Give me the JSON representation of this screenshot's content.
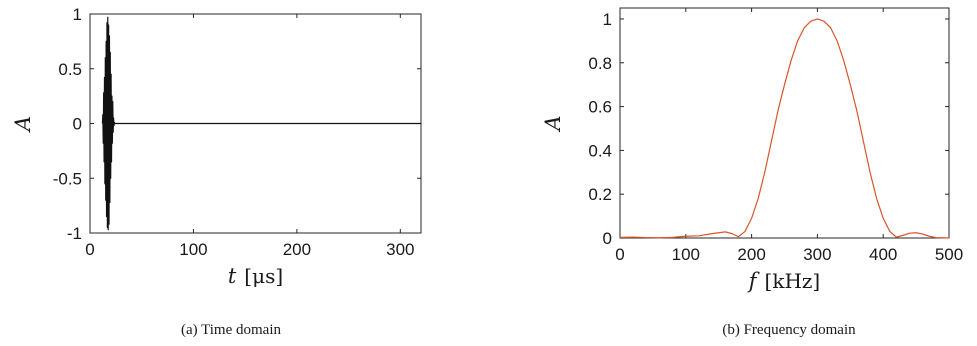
{
  "chart_data": [
    {
      "type": "line",
      "caption": "(a) Time domain",
      "xlabel_var": "t",
      "xlabel_unit": "[μs]",
      "ylabel": "A",
      "xlim": [
        0,
        320
      ],
      "ylim": [
        -1,
        1
      ],
      "xticks": [
        "0",
        "100",
        "200",
        "300"
      ],
      "yticks": [
        "1",
        "0.5",
        "0",
        "-0.5",
        "-1"
      ],
      "xtick_values": [
        0,
        100,
        200,
        300
      ],
      "ytick_values": [
        1,
        0.5,
        0,
        -0.5,
        -1
      ],
      "color": "#111111",
      "series": [
        {
          "x": [
            12,
            12.4,
            12.8,
            13.2,
            13.6,
            14,
            14.4,
            14.8,
            15.2,
            15.6,
            16,
            16.4,
            16.8,
            17.2,
            17.6,
            18,
            18.4,
            18.8,
            19.2,
            19.6,
            20,
            20.4,
            20.8,
            21.2,
            21.6,
            22,
            22.4,
            22.8,
            23.2,
            23.6,
            24,
            24.4,
            24.8,
            25.2,
            25.6,
            26,
            26.4,
            26.8,
            27.2,
            27.6,
            28,
            29,
            320
          ],
          "y": [
            0,
            0.08,
            -0.18,
            0.28,
            -0.35,
            0.42,
            -0.55,
            0.6,
            -0.7,
            0.75,
            -0.85,
            0.92,
            -0.95,
            0.97,
            -0.97,
            0.9,
            -0.92,
            0.8,
            -0.72,
            0.65,
            -0.5,
            0.45,
            -0.35,
            0.25,
            -0.18,
            0.2,
            -0.08,
            0.05,
            -0.02,
            0.01,
            0,
            0,
            0,
            0,
            0,
            0,
            0,
            0,
            0,
            0,
            0,
            0,
            0
          ]
        }
      ]
    },
    {
      "type": "line",
      "caption": "(b) Frequency domain",
      "xlabel_var": "f",
      "xlabel_unit": "[kHz]",
      "ylabel": "A",
      "xlim": [
        0,
        500
      ],
      "ylim": [
        0,
        1.05
      ],
      "xticks": [
        "0",
        "100",
        "200",
        "300",
        "400",
        "500"
      ],
      "yticks": [
        "1",
        "0.8",
        "0.6",
        "0.4",
        "0.2",
        "0"
      ],
      "xtick_values": [
        0,
        100,
        200,
        300,
        400,
        500
      ],
      "ytick_values": [
        1,
        0.8,
        0.6,
        0.4,
        0.2,
        0
      ],
      "color": "#d9552b",
      "series": [
        {
          "x": [
            0,
            20,
            40,
            60,
            80,
            100,
            120,
            140,
            160,
            170,
            180,
            190,
            200,
            210,
            220,
            230,
            240,
            250,
            260,
            270,
            280,
            290,
            300,
            310,
            320,
            330,
            340,
            350,
            360,
            370,
            380,
            390,
            400,
            410,
            420,
            430,
            440,
            450,
            460,
            470,
            480,
            490,
            500
          ],
          "y": [
            0.003,
            0.004,
            0.002,
            0.001,
            0.003,
            0.008,
            0.01,
            0.02,
            0.028,
            0.02,
            0.006,
            0.03,
            0.09,
            0.18,
            0.3,
            0.44,
            0.58,
            0.7,
            0.81,
            0.9,
            0.96,
            0.99,
            1.0,
            0.99,
            0.96,
            0.9,
            0.81,
            0.7,
            0.58,
            0.44,
            0.3,
            0.18,
            0.09,
            0.03,
            0.004,
            0.012,
            0.022,
            0.024,
            0.018,
            0.008,
            0.002,
            0.001,
            0.0
          ]
        }
      ]
    }
  ]
}
